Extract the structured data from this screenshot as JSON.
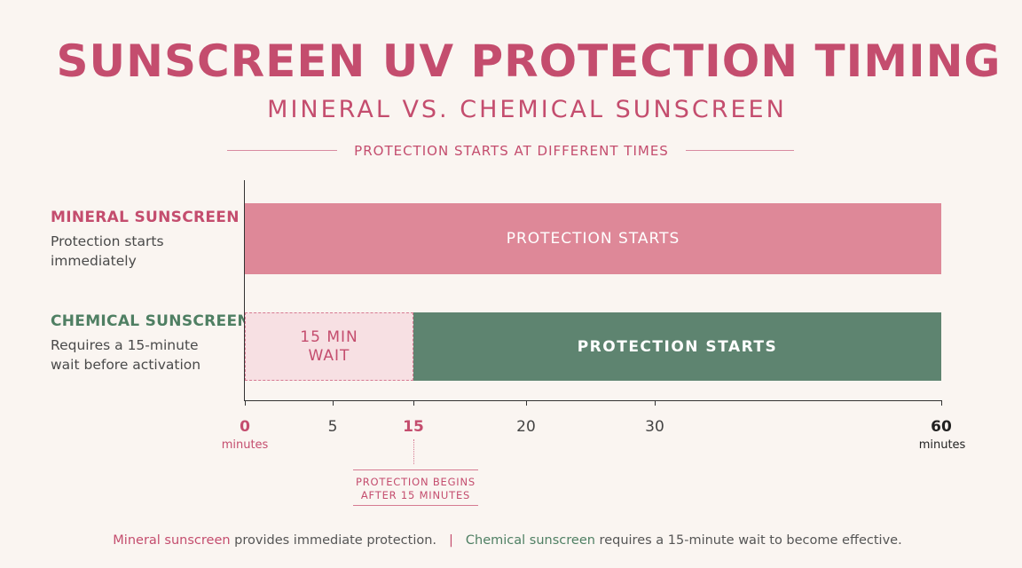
{
  "title": "SUNSCREEN UV PROTECTION TIMING",
  "subtitle": "MINERAL VS. CHEMICAL SUNSCREEN",
  "tagline": "PROTECTION STARTS AT DIFFERENT TIMES",
  "rows": [
    {
      "name": "MINERAL SUNSCREEN",
      "description": "Protection starts immediately"
    },
    {
      "name": "CHEMICAL SUNSCREEN",
      "description": "Requires a 15-minute wait before activation"
    }
  ],
  "chart_data": {
    "type": "bar",
    "orientation": "horizontal",
    "title": "SUNSCREEN UV PROTECTION TIMING",
    "xlim": [
      0,
      60
    ],
    "x_unit": "minutes",
    "ticks": [
      0,
      5,
      15,
      20,
      30,
      60
    ],
    "categories": [
      "MINERAL SUNSCREEN",
      "CHEMICAL SUNSCREEN"
    ],
    "segments": [
      {
        "category": "MINERAL SUNSCREEN",
        "label": "PROTECTION STARTS",
        "start": 0,
        "end": 60,
        "color": "#de8898"
      },
      {
        "category": "CHEMICAL SUNSCREEN",
        "label": "15 MIN WAIT",
        "start": 0,
        "end": 15,
        "color": "#f7e0e3",
        "style": "dashed"
      },
      {
        "category": "CHEMICAL SUNSCREEN",
        "label": "PROTECTION STARTS",
        "start": 15,
        "end": 60,
        "color": "#5e8470"
      }
    ],
    "annotation": {
      "x": 15,
      "text": "PROTECTION BEGINS AFTER 15 MINUTES"
    }
  },
  "axis": {
    "unit_label": "minutes"
  },
  "footer": {
    "mineral_term": "Mineral sunscreen",
    "mineral_rest": " provides immediate protection.",
    "separator": "|",
    "chemical_term": "Chemical sunscreen",
    "chemical_rest": " requires a 15-minute wait to become effective."
  },
  "colors": {
    "mineral": "#c44d6e",
    "chemical": "#4f7f63",
    "background": "#faf5f1"
  }
}
